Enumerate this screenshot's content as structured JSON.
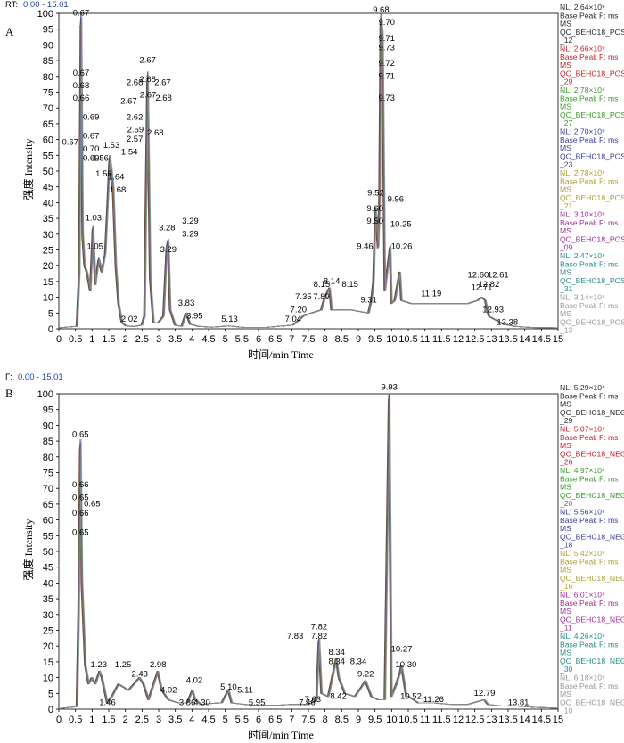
{
  "chart_data": [
    {
      "type": "line",
      "panel_label": "A",
      "rt_label": "RT:",
      "rt_range": "0.00 - 15.01",
      "xlabel": "时间/min   Time",
      "ylabel": "强度 Intensity",
      "xlim": [
        0,
        15
      ],
      "ylim": [
        0,
        100
      ],
      "x_ticks": [
        "0",
        "0.5",
        "1",
        "1.5",
        "2",
        "2.5",
        "3",
        "3.5",
        "4",
        "4.5",
        "5",
        "5.5",
        "6",
        "6.5",
        "7",
        "7.5",
        "8",
        "8.5",
        "9",
        "9.5",
        "10",
        "10.5",
        "11",
        "11.5",
        "12",
        "12.5",
        "13",
        "13.5",
        "14",
        "14.5",
        "15"
      ],
      "y_ticks": [
        "0",
        "5",
        "10",
        "15",
        "20",
        "25",
        "30",
        "35",
        "40",
        "45",
        "50",
        "55",
        "60",
        "65",
        "70",
        "75",
        "80",
        "85",
        "90",
        "95",
        "100"
      ],
      "trace_x": [
        0,
        0.55,
        0.62,
        0.67,
        0.72,
        0.78,
        0.85,
        0.95,
        1.03,
        1.1,
        1.2,
        1.3,
        1.4,
        1.48,
        1.53,
        1.58,
        1.64,
        1.72,
        1.8,
        1.9,
        2.02,
        2.15,
        2.3,
        2.5,
        2.58,
        2.67,
        2.75,
        2.85,
        3.0,
        3.15,
        3.25,
        3.29,
        3.35,
        3.5,
        3.7,
        3.83,
        3.9,
        3.95,
        4.2,
        4.6,
        5.13,
        5.6,
        6.2,
        7.04,
        7.2,
        7.35,
        7.6,
        7.89,
        8.0,
        8.14,
        8.2,
        8.4,
        8.8,
        9.31,
        9.4,
        9.46,
        9.52,
        9.6,
        9.64,
        9.68,
        9.73,
        9.8,
        9.96,
        10.0,
        10.1,
        10.25,
        10.3,
        10.6,
        11.19,
        11.8,
        12.3,
        12.6,
        12.71,
        12.82,
        12.88,
        12.93,
        13.1,
        13.38,
        13.7,
        14.2,
        15
      ],
      "trace_y": [
        0.3,
        0.8,
        18,
        98,
        30,
        20,
        18,
        12,
        32,
        14,
        22,
        18,
        24,
        42,
        54,
        50,
        44,
        20,
        8,
        2,
        1,
        0.8,
        0.8,
        1.2,
        4,
        80,
        16,
        2,
        2,
        4,
        26,
        28,
        6,
        1.2,
        0.8,
        5,
        3,
        1.5,
        0.8,
        0.5,
        0.9,
        0.4,
        0.4,
        1.2,
        2.5,
        4,
        5,
        6,
        10,
        13,
        6,
        6,
        6,
        5,
        9,
        15,
        38,
        26,
        40,
        98,
        92,
        12,
        26,
        8,
        9,
        18,
        9,
        8,
        8,
        8,
        8,
        9,
        10,
        9,
        6,
        4,
        3,
        1.5,
        0.8,
        0.4,
        0.3
      ],
      "series": [
        {
          "nl": "NL: 2.64×10⁹",
          "scan": "Base Peak F: ms",
          "ms": "MS",
          "name": "QC_BEHC18_POS",
          "suffix": "_12",
          "color": "#2a2a2a"
        },
        {
          "nl": "NL: 2.66×10⁹",
          "scan": "Base Peak F: ms",
          "ms": "MS",
          "name": "QC_BEHC18_POS",
          "suffix": "_29",
          "color": "#c0262d"
        },
        {
          "nl": "NL: 2.78×10⁹",
          "scan": "Base Peak F: ms",
          "ms": "MS",
          "name": "QC_BEHC18_POS",
          "suffix": "_27",
          "color": "#3a9a2c"
        },
        {
          "nl": "NL: 2.70×10⁹",
          "scan": "Base Peak F: ms",
          "ms": "MS",
          "name": "QC_BEHC18_POS",
          "suffix": "_23",
          "color": "#3d3d9e"
        },
        {
          "nl": "NL: 2.78×10⁹",
          "scan": "Base Peak F: ms",
          "ms": "MS",
          "name": "QC_BEHC18_POS",
          "suffix": "_21",
          "color": "#b0a030"
        },
        {
          "nl": "NL: 3.10×10⁹",
          "scan": "Base Peak F: ms",
          "ms": "MS",
          "name": "QC_BEHC18_POS",
          "suffix": "_09",
          "color": "#a0309a"
        },
        {
          "nl": "NL: 2.47×10⁹",
          "scan": "Base Peak F: ms",
          "ms": "MS",
          "name": "QC_BEHC18_POS",
          "suffix": "_31",
          "color": "#2a8a8a"
        },
        {
          "nl": "NL: 3.14×10⁹",
          "scan": "Base Peak F: ms",
          "ms": "MS",
          "name": "QC_BEHC18_POS",
          "suffix": "_13",
          "color": "#999999"
        }
      ],
      "annotations": [
        {
          "t": "0.67",
          "x": 0.67,
          "y": 99
        },
        {
          "t": "0.67",
          "x": 0.67,
          "y": 80
        },
        {
          "t": "0.68",
          "x": 0.67,
          "y": 76
        },
        {
          "t": "0.66",
          "x": 0.67,
          "y": 72
        },
        {
          "t": "0.69",
          "x": 0.97,
          "y": 66
        },
        {
          "t": "0.67",
          "x": 0.34,
          "y": 58
        },
        {
          "t": "0.67",
          "x": 0.97,
          "y": 60
        },
        {
          "t": "0.70",
          "x": 0.97,
          "y": 56
        },
        {
          "t": "0.69",
          "x": 0.97,
          "y": 53
        },
        {
          "t": "1.53",
          "x": 1.58,
          "y": 57
        },
        {
          "t": "1.56",
          "x": 1.25,
          "y": 53
        },
        {
          "t": "1.54",
          "x": 2.12,
          "y": 55
        },
        {
          "t": "1.56",
          "x": 1.35,
          "y": 48
        },
        {
          "t": "1.64",
          "x": 1.72,
          "y": 47
        },
        {
          "t": "1.68",
          "x": 1.77,
          "y": 43
        },
        {
          "t": "1.03",
          "x": 1.04,
          "y": 34
        },
        {
          "t": "1.05",
          "x": 1.09,
          "y": 25
        },
        {
          "t": "2.02",
          "x": 2.12,
          "y": 2
        },
        {
          "t": "2.67",
          "x": 2.67,
          "y": 84
        },
        {
          "t": "2.68",
          "x": 2.28,
          "y": 77
        },
        {
          "t": "2.68",
          "x": 2.67,
          "y": 78
        },
        {
          "t": "2.67",
          "x": 3.12,
          "y": 77
        },
        {
          "t": "2.67",
          "x": 2.68,
          "y": 73
        },
        {
          "t": "2.67",
          "x": 2.1,
          "y": 71
        },
        {
          "t": "2.68",
          "x": 3.15,
          "y": 72
        },
        {
          "t": "2.62",
          "x": 2.28,
          "y": 66
        },
        {
          "t": "2.57",
          "x": 2.28,
          "y": 59
        },
        {
          "t": "2.68",
          "x": 2.9,
          "y": 61
        },
        {
          "t": "2.59",
          "x": 2.3,
          "y": 62
        },
        {
          "t": "3.28",
          "x": 3.25,
          "y": 31
        },
        {
          "t": "3.29",
          "x": 3.95,
          "y": 33
        },
        {
          "t": "3.29",
          "x": 3.95,
          "y": 29
        },
        {
          "t": "3.29",
          "x": 3.29,
          "y": 24
        },
        {
          "t": "3.83",
          "x": 3.83,
          "y": 7
        },
        {
          "t": "3.95",
          "x": 4.08,
          "y": 3
        },
        {
          "t": "5.13",
          "x": 5.13,
          "y": 2
        },
        {
          "t": "7.04",
          "x": 7.04,
          "y": 2
        },
        {
          "t": "7.20",
          "x": 7.2,
          "y": 5
        },
        {
          "t": "7.35",
          "x": 7.35,
          "y": 9
        },
        {
          "t": "7.89",
          "x": 7.89,
          "y": 9
        },
        {
          "t": "8.15",
          "x": 7.9,
          "y": 13
        },
        {
          "t": "8.14",
          "x": 8.2,
          "y": 14
        },
        {
          "t": "8.15",
          "x": 8.75,
          "y": 13
        },
        {
          "t": "9.31",
          "x": 9.31,
          "y": 8
        },
        {
          "t": "9.46",
          "x": 9.2,
          "y": 25
        },
        {
          "t": "9.52",
          "x": 9.52,
          "y": 42
        },
        {
          "t": "9.60",
          "x": 9.5,
          "y": 37
        },
        {
          "t": "9.50",
          "x": 9.5,
          "y": 33
        },
        {
          "t": "9.68",
          "x": 9.68,
          "y": 100
        },
        {
          "t": "9.70",
          "x": 9.85,
          "y": 96
        },
        {
          "t": "9.71",
          "x": 9.85,
          "y": 91
        },
        {
          "t": "9.73",
          "x": 9.85,
          "y": 88
        },
        {
          "t": "9.72",
          "x": 9.85,
          "y": 83
        },
        {
          "t": "9.71",
          "x": 9.85,
          "y": 79
        },
        {
          "t": "9.73",
          "x": 9.85,
          "y": 72
        },
        {
          "t": "9.96",
          "x": 10.12,
          "y": 40
        },
        {
          "t": "10.25",
          "x": 10.28,
          "y": 32
        },
        {
          "t": "10.26",
          "x": 10.3,
          "y": 25
        },
        {
          "t": "11.19",
          "x": 11.19,
          "y": 10
        },
        {
          "t": "12.60",
          "x": 12.6,
          "y": 16
        },
        {
          "t": "12.61",
          "x": 13.2,
          "y": 16
        },
        {
          "t": "12.71",
          "x": 12.71,
          "y": 12
        },
        {
          "t": "12.82",
          "x": 12.92,
          "y": 13
        },
        {
          "t": "12.93",
          "x": 13.05,
          "y": 5
        },
        {
          "t": "13.38",
          "x": 13.48,
          "y": 1
        }
      ]
    },
    {
      "type": "line",
      "panel_label": "B",
      "rt_label": "Γ:",
      "rt_range": "0.00 - 15.01",
      "xlabel": "时间/min   Time",
      "ylabel": "强度 Intensity",
      "xlim": [
        0,
        15
      ],
      "ylim": [
        0,
        100
      ],
      "x_ticks": [
        "0",
        "0.5",
        "1",
        "1.5",
        "2",
        "2.5",
        "3",
        "3.5",
        "4",
        "4.5",
        "5",
        "5.5",
        "6",
        "6.5",
        "7",
        "7.5",
        "8",
        "8.5",
        "9",
        "9.5",
        "10",
        "10.5",
        "11",
        "11.5",
        "12",
        "12.5",
        "13",
        "13.5",
        "14",
        "14.5",
        "15"
      ],
      "y_ticks": [
        "0",
        "5",
        "10",
        "15",
        "20",
        "25",
        "30",
        "35",
        "40",
        "45",
        "50",
        "55",
        "60",
        "65",
        "70",
        "75",
        "80",
        "85",
        "90",
        "95",
        "100"
      ],
      "trace_x": [
        0,
        0.55,
        0.6,
        0.65,
        0.7,
        0.8,
        0.9,
        1.0,
        1.1,
        1.23,
        1.3,
        1.46,
        1.6,
        1.8,
        2.1,
        2.43,
        2.55,
        2.7,
        2.98,
        3.1,
        3.3,
        3.6,
        3.86,
        4.02,
        4.1,
        4.3,
        4.6,
        4.9,
        5.1,
        5.2,
        5.6,
        5.95,
        6.5,
        7.0,
        7.46,
        7.63,
        7.75,
        7.82,
        7.9,
        8.1,
        8.34,
        8.42,
        8.6,
        8.9,
        9.1,
        9.22,
        9.4,
        9.6,
        9.8,
        9.93,
        10.0,
        10.15,
        10.27,
        10.3,
        10.45,
        10.52,
        10.8,
        11.26,
        11.8,
        12.3,
        12.79,
        12.9,
        13.3,
        13.81,
        14.3,
        15
      ],
      "trace_y": [
        0.2,
        0.8,
        30,
        84,
        40,
        14,
        8,
        10,
        8,
        12,
        10,
        2,
        4,
        8,
        6,
        10,
        8,
        3,
        12,
        6,
        3,
        2,
        2,
        6,
        3,
        1.5,
        1.8,
        2,
        6,
        2,
        1.5,
        1.2,
        1.2,
        1.5,
        1.5,
        2,
        3,
        22,
        5,
        4,
        16,
        10,
        5,
        4,
        7,
        9,
        4,
        3,
        3,
        100,
        4,
        8,
        12,
        14,
        4,
        4,
        2,
        2,
        1.5,
        1.5,
        3,
        1.5,
        1,
        1,
        0.6,
        0.3
      ],
      "series": [
        {
          "nl": "NL: 5.29×10⁸",
          "scan": "Base Peak F: ms",
          "ms": "MS",
          "name": "QC_BEHC18_NEG",
          "suffix": "_29",
          "color": "#2a2a2a"
        },
        {
          "nl": "NL: 5.07×10⁸",
          "scan": "Base Peak F: ms",
          "ms": "MS",
          "name": "QC_BEHC18_NEG",
          "suffix": "_26",
          "color": "#c0262d"
        },
        {
          "nl": "NL: 4.97×10⁸",
          "scan": "Base Peak F: ms",
          "ms": "MS",
          "name": "QC_BEHC18_NEG",
          "suffix": "_20",
          "color": "#3a9a2c"
        },
        {
          "nl": "NL: 5.56×10⁸",
          "scan": "Base Peak F: ms",
          "ms": "MS",
          "name": "QC_BEHC18_NEG",
          "suffix": "_18",
          "color": "#3d3d9e"
        },
        {
          "nl": "NL: 5.42×10⁸",
          "scan": "Base Peak F: ms",
          "ms": "MS",
          "name": "QC_BEHC18_NEG",
          "suffix": "_16",
          "color": "#b0a030"
        },
        {
          "nl": "NL: 6.01×10⁸",
          "scan": "Base Peak F: ms",
          "ms": "MS",
          "name": "QC_BEHC18_NEG",
          "suffix": "_11",
          "color": "#a0309a"
        },
        {
          "nl": "NL: 4.26×10⁸",
          "scan": "Base Peak F: ms",
          "ms": "MS",
          "name": "QC_BEHC18_NEG",
          "suffix": "_30",
          "color": "#2a8a8a"
        },
        {
          "nl": "NL: 6.18×10⁸",
          "scan": "Base Peak F: ms",
          "ms": "MS",
          "name": "QC_BEHC18_NEG",
          "suffix": "_10",
          "color": "#999999"
        }
      ],
      "annotations": [
        {
          "t": "0.65",
          "x": 0.65,
          "y": 86
        },
        {
          "t": "0.66",
          "x": 0.65,
          "y": 70
        },
        {
          "t": "0.65",
          "x": 0.65,
          "y": 66
        },
        {
          "t": "0.65",
          "x": 1.0,
          "y": 64
        },
        {
          "t": "0.66",
          "x": 0.65,
          "y": 61
        },
        {
          "t": "0.65",
          "x": 0.65,
          "y": 55
        },
        {
          "t": "1.23",
          "x": 1.2,
          "y": 13
        },
        {
          "t": "1.25",
          "x": 1.93,
          "y": 13
        },
        {
          "t": "1.46",
          "x": 1.46,
          "y": 1
        },
        {
          "t": "2.43",
          "x": 2.43,
          "y": 10
        },
        {
          "t": "2.98",
          "x": 2.98,
          "y": 13
        },
        {
          "t": "4.02",
          "x": 3.3,
          "y": 5
        },
        {
          "t": "3.86",
          "x": 3.86,
          "y": 1
        },
        {
          "t": "4.02",
          "x": 4.07,
          "y": 8
        },
        {
          "t": "4.30",
          "x": 4.3,
          "y": 1
        },
        {
          "t": "5.10",
          "x": 5.1,
          "y": 6
        },
        {
          "t": "5.11",
          "x": 5.6,
          "y": 5
        },
        {
          "t": "5.95",
          "x": 5.95,
          "y": 1
        },
        {
          "t": "7.46",
          "x": 7.46,
          "y": 1
        },
        {
          "t": "7.63",
          "x": 7.63,
          "y": 2
        },
        {
          "t": "7.83",
          "x": 7.1,
          "y": 22
        },
        {
          "t": "7.82",
          "x": 7.82,
          "y": 25
        },
        {
          "t": "7.82",
          "x": 7.82,
          "y": 22
        },
        {
          "t": "8.34",
          "x": 8.35,
          "y": 17
        },
        {
          "t": "8.34",
          "x": 8.35,
          "y": 14
        },
        {
          "t": "8.34",
          "x": 9.0,
          "y": 14
        },
        {
          "t": "8.42",
          "x": 8.4,
          "y": 3
        },
        {
          "t": "9.22",
          "x": 9.22,
          "y": 10
        },
        {
          "t": "9.93",
          "x": 9.93,
          "y": 101
        },
        {
          "t": "10.27",
          "x": 10.3,
          "y": 18
        },
        {
          "t": "10.30",
          "x": 10.43,
          "y": 13
        },
        {
          "t": "10.52",
          "x": 10.58,
          "y": 3
        },
        {
          "t": "11.26",
          "x": 11.26,
          "y": 2
        },
        {
          "t": "12.79",
          "x": 12.79,
          "y": 4
        },
        {
          "t": "13.81",
          "x": 13.81,
          "y": 1
        }
      ]
    }
  ]
}
